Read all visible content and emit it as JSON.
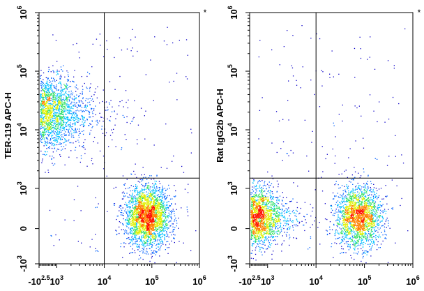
{
  "chart_data": [
    {
      "type": "scatter",
      "subtype": "flow-cytometry-density-dotplot",
      "marker": "*",
      "ylabel": "TER-119 APC-H",
      "xlabel": "",
      "x_ticks": [
        {
          "value": -316,
          "base": "-10",
          "exp": "2.5"
        },
        {
          "value": 1000,
          "base": "10",
          "exp": "3"
        },
        {
          "value": 10000,
          "base": "10",
          "exp": "4"
        },
        {
          "value": 100000,
          "base": "10",
          "exp": "5"
        },
        {
          "value": 1000000,
          "base": "10",
          "exp": "6"
        }
      ],
      "y_ticks": [
        {
          "value": -1000,
          "base": "-10",
          "exp": "3"
        },
        {
          "value": 0,
          "base": "0",
          "exp": ""
        },
        {
          "value": 1000,
          "base": "10",
          "exp": "3"
        },
        {
          "value": 10000,
          "base": "10",
          "exp": "4"
        },
        {
          "value": 100000,
          "base": "10",
          "exp": "5"
        },
        {
          "value": 1000000,
          "base": "10",
          "exp": "6"
        }
      ],
      "x_scale": "biexponential",
      "y_scale": "biexponential",
      "xlim": [
        -500,
        1000000
      ],
      "ylim": [
        -1500,
        1000000
      ],
      "gate": {
        "x": 10000,
        "y": 1500
      },
      "populations": [
        {
          "x": 55,
          "y": 20000,
          "count": 1400,
          "sx": 0.09,
          "sy": 0.07
        },
        {
          "x": 400,
          "y": 20000,
          "count": 900,
          "sx": 0.12,
          "sy": 0.08
        },
        {
          "x": 80000,
          "y": 300,
          "count": 2600,
          "sx": 0.07,
          "sy": 0.06
        },
        {
          "x": 3000,
          "y": 20000,
          "count": 250,
          "sx": 0.15,
          "sy": 0.06
        }
      ]
    },
    {
      "type": "scatter",
      "subtype": "flow-cytometry-density-dotplot",
      "marker": "*",
      "ylabel": "Rat IgG2b APC-H",
      "xlabel": "",
      "x_ticks": [
        {
          "value": -316,
          "base": "-10",
          "exp": "2.5"
        },
        {
          "value": 1000,
          "base": "10",
          "exp": "3"
        },
        {
          "value": 10000,
          "base": "10",
          "exp": "4"
        },
        {
          "value": 100000,
          "base": "10",
          "exp": "5"
        },
        {
          "value": 1000000,
          "base": "10",
          "exp": "6"
        }
      ],
      "y_ticks": [
        {
          "value": -1000,
          "base": "-10",
          "exp": "3"
        },
        {
          "value": 0,
          "base": "0",
          "exp": ""
        },
        {
          "value": 1000,
          "base": "10",
          "exp": "3"
        },
        {
          "value": 10000,
          "base": "10",
          "exp": "4"
        },
        {
          "value": 100000,
          "base": "10",
          "exp": "5"
        },
        {
          "value": 1000000,
          "base": "10",
          "exp": "6"
        }
      ],
      "x_scale": "biexponential",
      "y_scale": "biexponential",
      "xlim": [
        -500,
        1000000
      ],
      "ylim": [
        -1500,
        1000000
      ],
      "gate": {
        "x": 10000,
        "y": 1500
      },
      "populations": [
        {
          "x": 55,
          "y": 300,
          "count": 1700,
          "sx": 0.07,
          "sy": 0.06
        },
        {
          "x": 400,
          "y": 300,
          "count": 700,
          "sx": 0.13,
          "sy": 0.05
        },
        {
          "x": 75000,
          "y": 300,
          "count": 2000,
          "sx": 0.07,
          "sy": 0.06
        }
      ]
    }
  ],
  "colors": {
    "density_scale": [
      "#0a00c8",
      "#0060ff",
      "#00c0ff",
      "#30e060",
      "#e0f000",
      "#ff8000",
      "#ff1000"
    ],
    "axis": "#000000",
    "background": "#ffffff"
  }
}
